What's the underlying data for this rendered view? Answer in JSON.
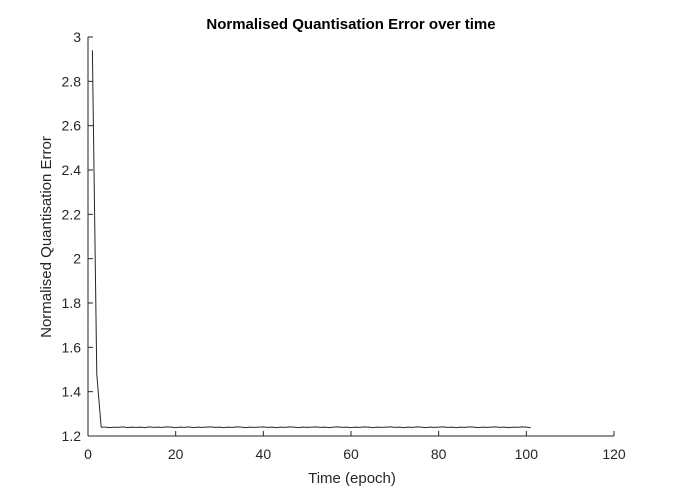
{
  "chart_data": {
    "type": "line",
    "title": "Normalised Quantisation Error over time",
    "xlabel": "Time (epoch)",
    "ylabel": "Normalised Quantisation Error",
    "xlim": [
      0,
      120
    ],
    "ylim": [
      1.2,
      3
    ],
    "xticks": [
      0,
      20,
      40,
      60,
      80,
      100,
      120
    ],
    "yticks": [
      1.2,
      1.4,
      1.6,
      1.8,
      2,
      2.2,
      2.4,
      2.6,
      2.8,
      3
    ],
    "grid": false,
    "series": [
      {
        "x": [
          1,
          2,
          3,
          4,
          5,
          6,
          7,
          8,
          9,
          10,
          11,
          12,
          13,
          14,
          15,
          16,
          17,
          18,
          19,
          20,
          21,
          22,
          23,
          24,
          25,
          26,
          27,
          28,
          29,
          30,
          31,
          32,
          33,
          34,
          35,
          36,
          37,
          38,
          39,
          40,
          41,
          42,
          43,
          44,
          45,
          46,
          47,
          48,
          49,
          50,
          51,
          52,
          53,
          54,
          55,
          56,
          57,
          58,
          59,
          60,
          61,
          62,
          63,
          64,
          65,
          66,
          67,
          68,
          69,
          70,
          71,
          72,
          73,
          74,
          75,
          76,
          77,
          78,
          79,
          80,
          81,
          82,
          83,
          84,
          85,
          86,
          87,
          88,
          89,
          90,
          91,
          92,
          93,
          94,
          95,
          96,
          97,
          98,
          99,
          100,
          101
        ],
        "y": [
          2.94,
          1.48,
          1.24,
          1.24,
          1.238,
          1.24,
          1.239,
          1.241,
          1.238,
          1.24,
          1.239,
          1.24,
          1.238,
          1.241,
          1.239,
          1.24,
          1.239,
          1.241,
          1.24,
          1.238,
          1.24,
          1.239,
          1.241,
          1.238,
          1.24,
          1.239,
          1.24,
          1.241,
          1.239,
          1.24,
          1.238,
          1.24,
          1.239,
          1.241,
          1.24,
          1.238,
          1.24,
          1.239,
          1.24,
          1.241,
          1.239,
          1.24,
          1.238,
          1.24,
          1.239,
          1.241,
          1.24,
          1.238,
          1.24,
          1.239,
          1.24,
          1.241,
          1.239,
          1.24,
          1.238,
          1.24,
          1.241,
          1.239,
          1.24,
          1.238,
          1.24,
          1.239,
          1.241,
          1.24,
          1.238,
          1.24,
          1.239,
          1.24,
          1.241,
          1.239,
          1.24,
          1.238,
          1.24,
          1.239,
          1.241,
          1.24,
          1.238,
          1.24,
          1.239,
          1.24,
          1.241,
          1.239,
          1.24,
          1.238,
          1.24,
          1.239,
          1.241,
          1.24,
          1.238,
          1.24,
          1.239,
          1.24,
          1.241,
          1.239,
          1.24,
          1.238,
          1.24,
          1.239,
          1.241,
          1.24,
          1.238
        ]
      }
    ]
  },
  "colors": {
    "line": "#262626",
    "axis": "#262626"
  }
}
